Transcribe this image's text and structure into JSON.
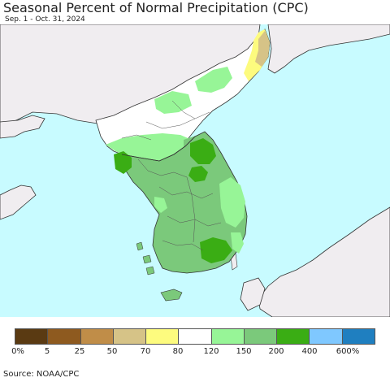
{
  "title": "Seasonal Percent of Normal Precipitation (CPC)",
  "subtitle": "Sep. 1 - Oct. 31, 2024",
  "source": "Source: NOAA/CPC",
  "colors": {
    "water": "#c8fbff",
    "land_outside": "#f0edf0",
    "border": "#333333"
  },
  "legend": {
    "colors": [
      "#5a3a12",
      "#8e5a1f",
      "#c08d48",
      "#d6c387",
      "#fdfb7e",
      "#ffffff",
      "#97f597",
      "#7bc97b",
      "#3aad14",
      "#7fc8ff",
      "#1f7fc0"
    ],
    "labels": [
      "0%",
      "5",
      "25",
      "50",
      "70",
      "80",
      "120",
      "150",
      "200",
      "400",
      "600%"
    ]
  }
}
